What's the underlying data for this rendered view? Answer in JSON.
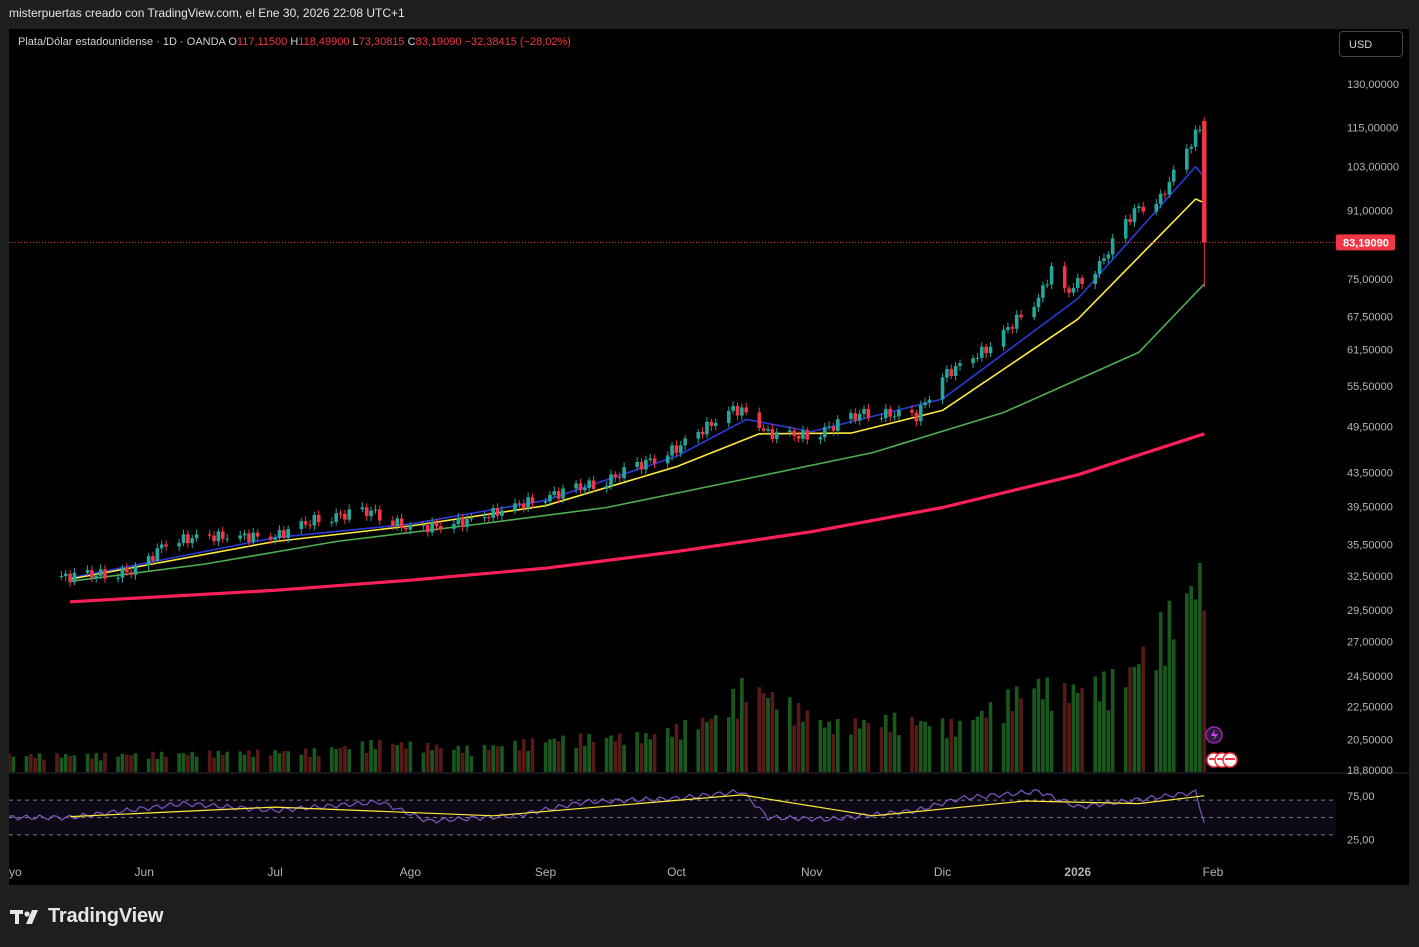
{
  "header": {
    "title": "misterpuertas creado con TradingView.com, el Ene 30, 2026 22:08 UTC+1"
  },
  "legend": {
    "symbol": "Plata/Dólar estadounidense · 1D · OANDA",
    "o_label": "O",
    "o": "117,11500",
    "h_label": "H",
    "h": "118,49900",
    "l_label": "L",
    "l": "73,30815",
    "c_label": "C",
    "c": "83,19090",
    "change": "−32,38415 (−28,02%)"
  },
  "currency_button": "USD",
  "brand": "TradingView",
  "colors": {
    "up": "#26a69a",
    "down": "#f23645",
    "ma_fast": "#2b3bd9",
    "ma_mid": "#ffeb3b",
    "ma_slow": "#4caf50",
    "ma_long": "#ff1f5a",
    "rsi": "#7e57c2",
    "rsi_ma": "#ffeb3b"
  },
  "chart_data": {
    "type": "candlestick",
    "symbol": "Plata/Dólar estadounidense",
    "interval": "1D",
    "y_scale": "log",
    "last_price": "83,19090",
    "price_ticks": [
      "130,00000",
      "115,00000",
      "103,00000",
      "91,00000",
      "75,00000",
      "67,50000",
      "61,50000",
      "55,50000",
      "49,50000",
      "43,50000",
      "39,50000",
      "35,50000",
      "32,50000",
      "29,50000",
      "27,00000",
      "24,50000",
      "22,50000",
      "20,50000",
      "18,80000"
    ],
    "x_ticks": [
      "yo",
      "Jun",
      "Jul",
      "Ago",
      "Sep",
      "Oct",
      "Nov",
      "Dic",
      "2026",
      "Feb"
    ],
    "close_series": [
      {
        "date": "2025-05-15",
        "close": 32.4
      },
      {
        "date": "2025-05-31",
        "close": 33.0
      },
      {
        "date": "2025-06-06",
        "close": 35.8
      },
      {
        "date": "2025-06-16",
        "close": 36.3
      },
      {
        "date": "2025-07-01",
        "close": 36.3
      },
      {
        "date": "2025-07-11",
        "close": 38.2
      },
      {
        "date": "2025-07-23",
        "close": 39.0
      },
      {
        "date": "2025-08-01",
        "close": 37.0
      },
      {
        "date": "2025-08-15",
        "close": 38.0
      },
      {
        "date": "2025-09-01",
        "close": 40.6
      },
      {
        "date": "2025-09-15",
        "close": 42.5
      },
      {
        "date": "2025-10-01",
        "close": 46.5
      },
      {
        "date": "2025-10-14",
        "close": 52.0
      },
      {
        "date": "2025-10-17",
        "close": 51.5
      },
      {
        "date": "2025-10-22",
        "close": 48.5
      },
      {
        "date": "2025-11-01",
        "close": 48.2
      },
      {
        "date": "2025-11-13",
        "close": 51.5
      },
      {
        "date": "2025-11-25",
        "close": 51.0
      },
      {
        "date": "2025-12-01",
        "close": 57.0
      },
      {
        "date": "2025-12-12",
        "close": 62.0
      },
      {
        "date": "2025-12-23",
        "close": 71.0
      },
      {
        "date": "2025-12-26",
        "close": 77.0
      },
      {
        "date": "2025-12-29",
        "close": 72.0
      },
      {
        "date": "2026-01-06",
        "close": 78.0
      },
      {
        "date": "2026-01-14",
        "close": 91.0
      },
      {
        "date": "2026-01-20",
        "close": 94.0
      },
      {
        "date": "2026-01-26",
        "close": 108.0
      },
      {
        "date": "2026-01-29",
        "close": 115.0
      },
      {
        "date": "2026-01-30",
        "close": 83.19
      }
    ],
    "final_candle": {
      "date": "2026-01-30",
      "open": 117.115,
      "high": 118.499,
      "low": 73.30815,
      "close": 83.1909
    },
    "moving_averages": [
      {
        "color": "#2b3bd9",
        "points": [
          {
            "date": "2025-05-15",
            "value": 32.3
          },
          {
            "date": "2025-07-01",
            "value": 36.2
          },
          {
            "date": "2025-08-01",
            "value": 37.6
          },
          {
            "date": "2025-09-01",
            "value": 40.2
          },
          {
            "date": "2025-10-01",
            "value": 45.5
          },
          {
            "date": "2025-10-17",
            "value": 50.5
          },
          {
            "date": "2025-11-01",
            "value": 48.8
          },
          {
            "date": "2025-12-01",
            "value": 53.5
          },
          {
            "date": "2026-01-01",
            "value": 71.0
          },
          {
            "date": "2026-01-28",
            "value": 103.0
          },
          {
            "date": "2026-01-30",
            "value": 100.0
          }
        ]
      },
      {
        "color": "#ffeb3b",
        "points": [
          {
            "date": "2025-05-15",
            "value": 32.2
          },
          {
            "date": "2025-07-01",
            "value": 35.8
          },
          {
            "date": "2025-08-01",
            "value": 37.4
          },
          {
            "date": "2025-09-01",
            "value": 39.6
          },
          {
            "date": "2025-10-01",
            "value": 44.2
          },
          {
            "date": "2025-10-20",
            "value": 48.5
          },
          {
            "date": "2025-11-10",
            "value": 48.6
          },
          {
            "date": "2025-12-01",
            "value": 51.8
          },
          {
            "date": "2026-01-01",
            "value": 67.0
          },
          {
            "date": "2026-01-28",
            "value": 94.0
          },
          {
            "date": "2026-01-30",
            "value": 93.0
          }
        ]
      },
      {
        "color": "#4caf50",
        "points": [
          {
            "date": "2025-05-15",
            "value": 32.0
          },
          {
            "date": "2025-06-15",
            "value": 33.6
          },
          {
            "date": "2025-07-15",
            "value": 35.8
          },
          {
            "date": "2025-08-15",
            "value": 37.5
          },
          {
            "date": "2025-09-15",
            "value": 39.4
          },
          {
            "date": "2025-10-15",
            "value": 42.5
          },
          {
            "date": "2025-11-15",
            "value": 46.0
          },
          {
            "date": "2025-12-15",
            "value": 51.5
          },
          {
            "date": "2026-01-15",
            "value": 61.0
          },
          {
            "date": "2026-01-30",
            "value": 74.0
          }
        ]
      },
      {
        "color": "#ff1f5a",
        "points": [
          {
            "date": "2025-05-15",
            "value": 30.2
          },
          {
            "date": "2025-07-01",
            "value": 31.2
          },
          {
            "date": "2025-08-01",
            "value": 32.1
          },
          {
            "date": "2025-09-01",
            "value": 33.2
          },
          {
            "date": "2025-10-01",
            "value": 34.8
          },
          {
            "date": "2025-11-01",
            "value": 36.8
          },
          {
            "date": "2025-12-01",
            "value": 39.4
          },
          {
            "date": "2026-01-01",
            "value": 43.2
          },
          {
            "date": "2026-01-30",
            "value": 48.5
          }
        ]
      }
    ],
    "volume": [
      {
        "date": "2025-05-20",
        "value": 8
      },
      {
        "date": "2025-06-15",
        "value": 9
      },
      {
        "date": "2025-07-10",
        "value": 10
      },
      {
        "date": "2025-07-25",
        "value": 14
      },
      {
        "date": "2025-08-15",
        "value": 11
      },
      {
        "date": "2025-09-05",
        "value": 16
      },
      {
        "date": "2025-09-25",
        "value": 17
      },
      {
        "date": "2025-10-10",
        "value": 26
      },
      {
        "date": "2025-10-17",
        "value": 42
      },
      {
        "date": "2025-11-05",
        "value": 22
      },
      {
        "date": "2025-11-20",
        "value": 25
      },
      {
        "date": "2025-12-05",
        "value": 22
      },
      {
        "date": "2025-12-22",
        "value": 42
      },
      {
        "date": "2025-12-29",
        "value": 38
      },
      {
        "date": "2026-01-12",
        "value": 45
      },
      {
        "date": "2026-01-26",
        "value": 84
      },
      {
        "date": "2026-01-30",
        "value": 94
      }
    ],
    "rsi": {
      "ticks": [
        "75,00",
        "25,00"
      ],
      "levels": [
        70,
        50,
        30
      ],
      "series": [
        {
          "date": "2025-05-15",
          "value": 50
        },
        {
          "date": "2025-06-10",
          "value": 66
        },
        {
          "date": "2025-07-01",
          "value": 58
        },
        {
          "date": "2025-07-25",
          "value": 68
        },
        {
          "date": "2025-08-05",
          "value": 46
        },
        {
          "date": "2025-08-25",
          "value": 52
        },
        {
          "date": "2025-09-10",
          "value": 68
        },
        {
          "date": "2025-10-01",
          "value": 72
        },
        {
          "date": "2025-10-16",
          "value": 80
        },
        {
          "date": "2025-10-22",
          "value": 50
        },
        {
          "date": "2025-11-05",
          "value": 48
        },
        {
          "date": "2025-11-25",
          "value": 58
        },
        {
          "date": "2025-12-05",
          "value": 72
        },
        {
          "date": "2025-12-23",
          "value": 80
        },
        {
          "date": "2026-01-01",
          "value": 62
        },
        {
          "date": "2026-01-14",
          "value": 70
        },
        {
          "date": "2026-01-28",
          "value": 79
        },
        {
          "date": "2026-01-30",
          "value": 45
        }
      ],
      "ma": [
        {
          "date": "2025-05-15",
          "value": 51
        },
        {
          "date": "2025-07-01",
          "value": 62
        },
        {
          "date": "2025-08-20",
          "value": 52
        },
        {
          "date": "2025-10-16",
          "value": 76
        },
        {
          "date": "2025-11-15",
          "value": 52
        },
        {
          "date": "2025-12-20",
          "value": 69
        },
        {
          "date": "2026-01-15",
          "value": 66
        },
        {
          "date": "2026-01-30",
          "value": 75
        }
      ]
    }
  }
}
